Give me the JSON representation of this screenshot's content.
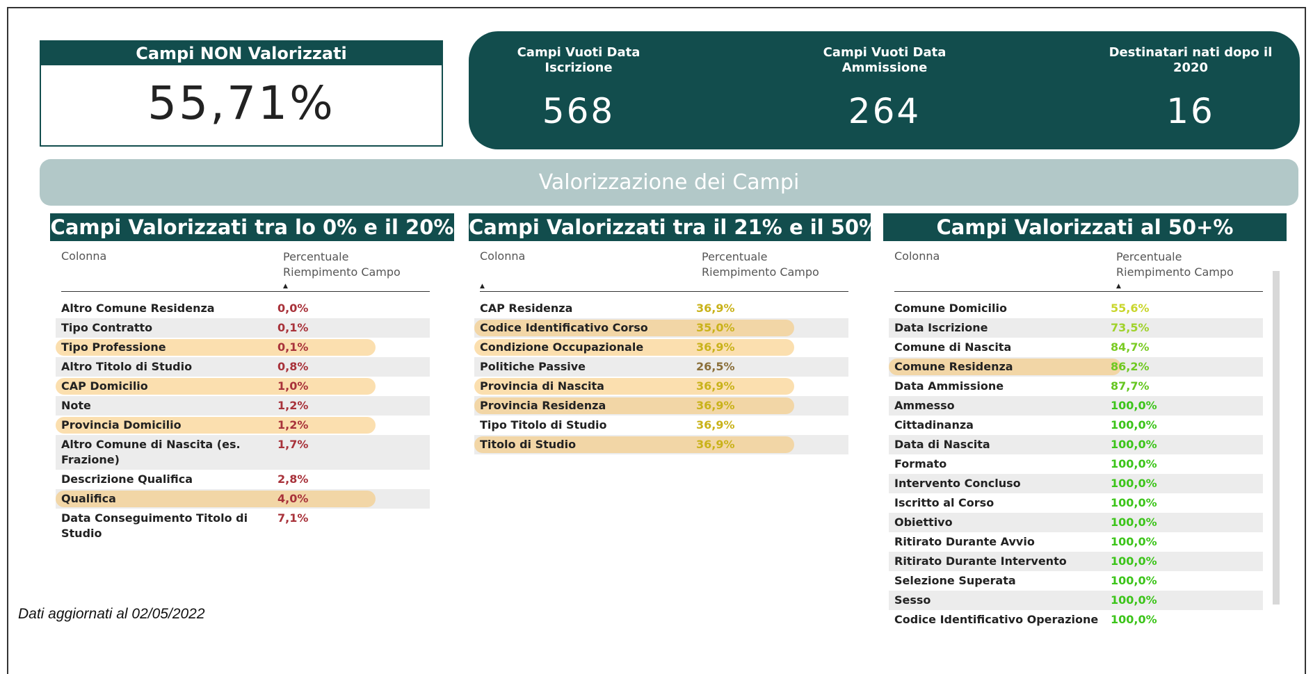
{
  "header_kpi": {
    "title": "Campi NON Valorizzati",
    "value": "55,71%"
  },
  "kpis": [
    {
      "label": "Campi Vuoti Data Iscrizione",
      "value": "568"
    },
    {
      "label": "Campi Vuoti Data Ammissione",
      "value": "264"
    },
    {
      "label": "Destinatari nati dopo il 2020",
      "value": "16"
    }
  ],
  "banner": "Valorizzazione dei Campi",
  "tables": [
    {
      "title": "Campi Valorizzati tra lo 0% e il 20%",
      "columns": [
        "Colonna",
        "Percentuale Riempimento Campo"
      ],
      "sort_column": 1,
      "rows": [
        {
          "name": "Altro Comune Residenza",
          "value": "0,0%",
          "color": "#a8323a",
          "highlighted": false
        },
        {
          "name": "Tipo Contratto",
          "value": "0,1%",
          "color": "#a8323a",
          "highlighted": false
        },
        {
          "name": "Tipo Professione",
          "value": "0,1%",
          "color": "#a8323a",
          "highlighted": true
        },
        {
          "name": "Altro Titolo di Studio",
          "value": "0,8%",
          "color": "#a8323a",
          "highlighted": false
        },
        {
          "name": "CAP Domicilio",
          "value": "1,0%",
          "color": "#a8323a",
          "highlighted": true
        },
        {
          "name": "Note",
          "value": "1,2%",
          "color": "#a8323a",
          "highlighted": false
        },
        {
          "name": "Provincia Domicilio",
          "value": "1,2%",
          "color": "#a8323a",
          "highlighted": true
        },
        {
          "name": "Altro Comune di Nascita (es. Frazione)",
          "value": "1,7%",
          "color": "#a8323a",
          "highlighted": false
        },
        {
          "name": "Descrizione Qualifica",
          "value": "2,8%",
          "color": "#a8323a",
          "highlighted": false
        },
        {
          "name": "Qualifica",
          "value": "4,0%",
          "color": "#a8323a",
          "highlighted": true
        },
        {
          "name": "Data Conseguimento Titolo di Studio",
          "value": "7,1%",
          "color": "#a8323a",
          "highlighted": false
        }
      ]
    },
    {
      "title": "Campi Valorizzati tra il 21% e il 50%",
      "columns": [
        "Colonna",
        "Percentuale Riempimento Campo"
      ],
      "sort_column": 0,
      "rows": [
        {
          "name": "CAP Residenza",
          "value": "36,9%",
          "color": "#c9b21a",
          "highlighted": false
        },
        {
          "name": "Codice Identificativo Corso",
          "value": "35,0%",
          "color": "#c9b21a",
          "highlighted": true
        },
        {
          "name": "Condizione Occupazionale",
          "value": "36,9%",
          "color": "#c9b21a",
          "highlighted": true
        },
        {
          "name": "Politiche Passive",
          "value": "26,5%",
          "color": "#8a6f3a",
          "highlighted": false
        },
        {
          "name": "Provincia di Nascita",
          "value": "36,9%",
          "color": "#c9b21a",
          "highlighted": true
        },
        {
          "name": "Provincia Residenza",
          "value": "36,9%",
          "color": "#c9b21a",
          "highlighted": true
        },
        {
          "name": "Tipo Titolo di Studio",
          "value": "36,9%",
          "color": "#c9b21a",
          "highlighted": false
        },
        {
          "name": "Titolo di Studio",
          "value": "36,9%",
          "color": "#c9b21a",
          "highlighted": true
        }
      ]
    },
    {
      "title": "Campi Valorizzati al 50+%",
      "columns": [
        "Colonna",
        "Percentuale Riempimento Campo"
      ],
      "sort_column": 1,
      "rows": [
        {
          "name": "Comune Domicilio",
          "value": "55,6%",
          "color": "#c9d62c",
          "highlighted": false
        },
        {
          "name": "Data Iscrizione",
          "value": "73,5%",
          "color": "#9fd22a",
          "highlighted": false
        },
        {
          "name": "Comune di Nascita",
          "value": "84,7%",
          "color": "#7acb24",
          "highlighted": false
        },
        {
          "name": "Comune Residenza",
          "value": "86,2%",
          "color": "#6fc822",
          "highlighted": true
        },
        {
          "name": "Data Ammissione",
          "value": "87,7%",
          "color": "#65c620",
          "highlighted": false
        },
        {
          "name": "Ammesso",
          "value": "100,0%",
          "color": "#3cc41a",
          "highlighted": false
        },
        {
          "name": "Cittadinanza",
          "value": "100,0%",
          "color": "#3cc41a",
          "highlighted": false
        },
        {
          "name": "Data di Nascita",
          "value": "100,0%",
          "color": "#3cc41a",
          "highlighted": false
        },
        {
          "name": "Formato",
          "value": "100,0%",
          "color": "#3cc41a",
          "highlighted": false
        },
        {
          "name": "Intervento Concluso",
          "value": "100,0%",
          "color": "#3cc41a",
          "highlighted": false
        },
        {
          "name": "Iscritto al Corso",
          "value": "100,0%",
          "color": "#3cc41a",
          "highlighted": false
        },
        {
          "name": "Obiettivo",
          "value": "100,0%",
          "color": "#3cc41a",
          "highlighted": false
        },
        {
          "name": "Ritirato Durante Avvio",
          "value": "100,0%",
          "color": "#3cc41a",
          "highlighted": false
        },
        {
          "name": "Ritirato Durante Intervento",
          "value": "100,0%",
          "color": "#3cc41a",
          "highlighted": false
        },
        {
          "name": "Selezione Superata",
          "value": "100,0%",
          "color": "#3cc41a",
          "highlighted": false
        },
        {
          "name": "Sesso",
          "value": "100,0%",
          "color": "#3cc41a",
          "highlighted": false
        },
        {
          "name": "Codice Identificativo Operazione",
          "value": "100,0%",
          "color": "#3cc41a",
          "highlighted": false
        }
      ]
    }
  ],
  "footer": "Dati aggiornati al 02/05/2022"
}
